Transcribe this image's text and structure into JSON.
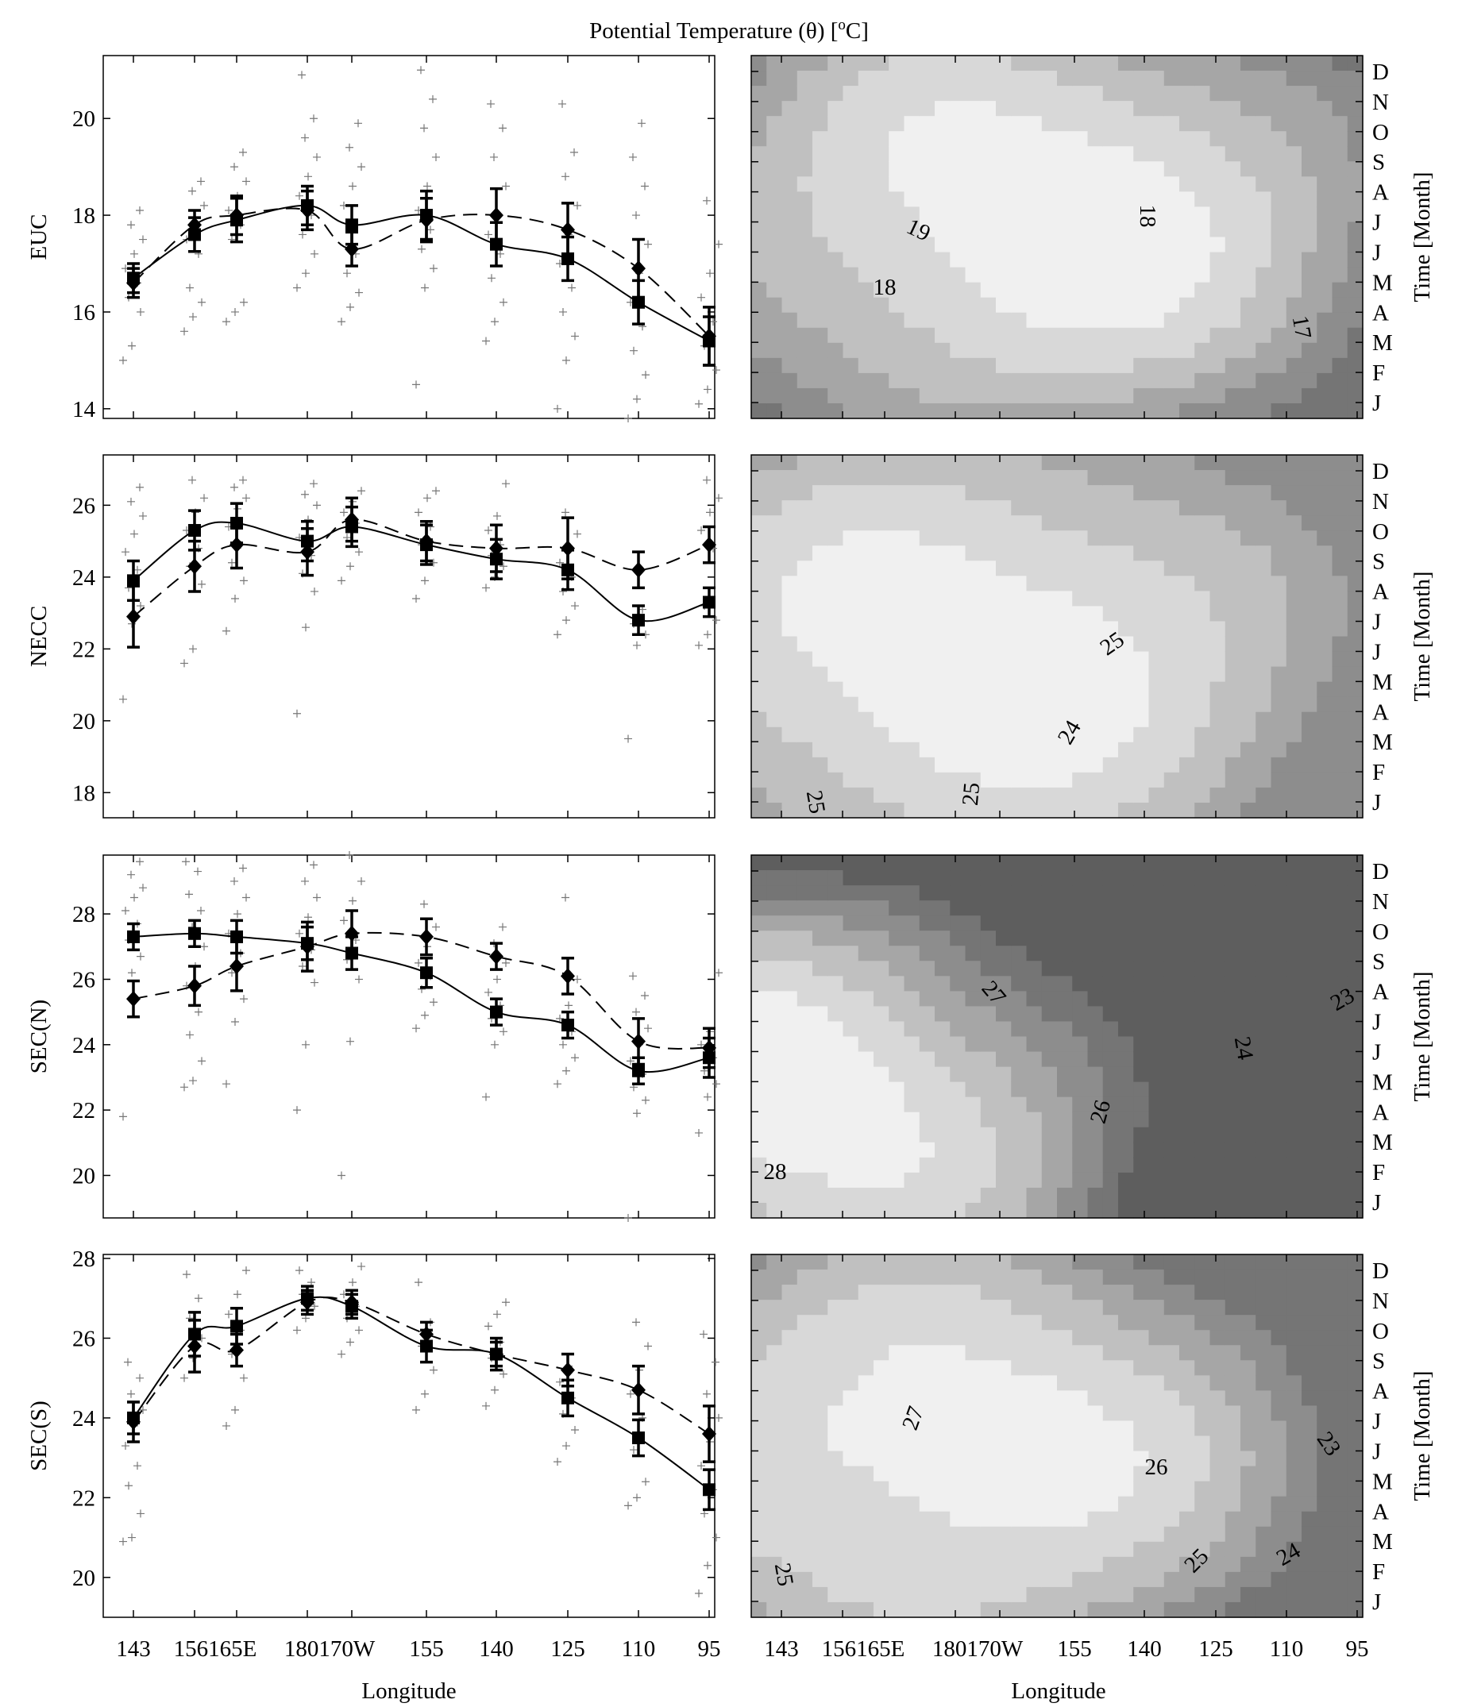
{
  "figure": {
    "title": "Potential Temperature (θ) [",
    "title_sup": "o",
    "title_unit": "C]",
    "xlabel": "Longitude",
    "time_label": "Time [Month]"
  },
  "colors": {
    "shades": [
      "#ffffff",
      "#f0f0f0",
      "#d8d8d8",
      "#c0c0c0",
      "#a6a6a6",
      "#8d8d8d",
      "#757575",
      "#5e5e5e"
    ]
  },
  "chart_data": [
    {
      "type": "line",
      "panel": "EUC",
      "ylabel": "EUC",
      "ylim": [
        13.8,
        21.3
      ],
      "yticks": [
        14,
        16,
        18,
        20
      ],
      "x_categories": [
        "143",
        "156",
        "165E",
        "180",
        "170W",
        "155",
        "140",
        "125",
        "110",
        "95"
      ],
      "series": [
        {
          "style": "solid-square",
          "values": [
            16.7,
            17.6,
            17.9,
            18.2,
            17.8,
            18.0,
            17.4,
            17.1,
            16.2,
            15.4
          ],
          "errors": [
            0.3,
            0.35,
            0.45,
            0.4,
            0.4,
            0.5,
            0.45,
            0.45,
            0.45,
            0.5
          ]
        },
        {
          "style": "dashed-diamond",
          "values": [
            16.6,
            17.8,
            18.0,
            18.1,
            17.3,
            17.9,
            18.0,
            17.7,
            16.9,
            15.5
          ],
          "errors": [
            0.3,
            0.3,
            0.4,
            0.4,
            0.35,
            0.45,
            0.55,
            0.55,
            0.6,
            0.6
          ]
        }
      ],
      "scatter": [
        [
          15.0,
          15.3,
          16.0,
          16.3,
          16.6,
          16.9,
          17.2,
          17.5,
          17.8,
          18.1
        ],
        [
          15.6,
          15.9,
          16.2,
          16.5,
          17.2,
          17.5,
          17.8,
          18.2,
          18.5,
          18.7
        ],
        [
          15.8,
          16.0,
          16.2,
          17.5,
          17.8,
          18.1,
          18.4,
          18.7,
          19.0,
          19.3
        ],
        [
          16.5,
          16.8,
          17.2,
          17.6,
          18.0,
          18.4,
          18.8,
          19.2,
          19.6,
          20.0,
          20.9
        ],
        [
          15.8,
          16.1,
          16.4,
          16.8,
          17.2,
          18.2,
          18.6,
          19.0,
          19.4,
          19.9
        ],
        [
          14.5,
          16.5,
          16.9,
          17.3,
          17.7,
          18.1,
          18.6,
          19.2,
          19.8,
          20.4,
          21.0
        ],
        [
          15.4,
          15.8,
          16.2,
          16.7,
          17.2,
          17.6,
          18.0,
          18.6,
          19.2,
          19.8,
          20.3
        ],
        [
          14.0,
          15.0,
          15.5,
          16.0,
          16.5,
          17.0,
          17.6,
          18.2,
          18.8,
          19.3,
          20.3
        ],
        [
          13.8,
          14.2,
          14.7,
          15.2,
          15.7,
          16.2,
          16.8,
          17.4,
          18.0,
          18.6,
          19.2,
          19.9
        ],
        [
          14.1,
          14.4,
          14.8,
          15.3,
          15.8,
          16.3,
          16.8,
          17.4,
          18.3
        ]
      ],
      "contour": {
        "levels": [
          16,
          17,
          18,
          19,
          20
        ],
        "labels": [
          {
            "text": "19",
            "x": 1157,
            "y": 289,
            "rotate": 25
          },
          {
            "text": "18",
            "x": 1114,
            "y": 361,
            "rotate": 0
          },
          {
            "text": "18",
            "x": 1446,
            "y": 272,
            "rotate": 90
          },
          {
            "text": "17",
            "x": 1640,
            "y": 412,
            "rotate": 80
          }
        ]
      }
    },
    {
      "type": "line",
      "panel": "NECC",
      "ylabel": "NECC",
      "ylim": [
        17.3,
        27.4
      ],
      "yticks": [
        18,
        20,
        22,
        24,
        26
      ],
      "x_categories": [
        "143",
        "156",
        "165E",
        "180",
        "170W",
        "155",
        "140",
        "125",
        "110",
        "95"
      ],
      "series": [
        {
          "style": "solid-square",
          "values": [
            23.9,
            25.3,
            25.5,
            25.0,
            25.4,
            24.9,
            24.5,
            24.2,
            22.8,
            23.3
          ],
          "errors": [
            0.55,
            0.55,
            0.55,
            0.55,
            0.55,
            0.55,
            0.55,
            0.55,
            0.4,
            0.4
          ]
        },
        {
          "style": "dashed-diamond",
          "values": [
            22.9,
            24.3,
            24.9,
            24.7,
            25.6,
            25.0,
            24.8,
            24.8,
            24.2,
            24.9
          ],
          "errors": [
            0.85,
            0.7,
            0.65,
            0.65,
            0.6,
            0.55,
            0.65,
            0.85,
            0.5,
            0.5
          ]
        }
      ],
      "scatter": [
        [
          20.6,
          22.7,
          23.2,
          23.7,
          24.2,
          24.7,
          25.2,
          25.7,
          26.1,
          26.5
        ],
        [
          21.6,
          22.0,
          23.8,
          24.3,
          24.8,
          25.3,
          25.8,
          26.2,
          26.7
        ],
        [
          22.5,
          23.4,
          23.9,
          24.4,
          24.9,
          25.4,
          25.9,
          26.2,
          26.5,
          26.7
        ],
        [
          20.2,
          22.6,
          23.6,
          24.1,
          24.6,
          25.1,
          25.6,
          26.0,
          26.3,
          26.6
        ],
        [
          23.9,
          24.3,
          24.7,
          25.1,
          25.5,
          25.8,
          26.1,
          26.4
        ],
        [
          23.4,
          23.9,
          24.4,
          24.9,
          25.4,
          25.8,
          26.2,
          26.4
        ],
        [
          23.7,
          24.0,
          24.3,
          24.6,
          24.9,
          25.3,
          25.7,
          26.6
        ],
        [
          22.4,
          22.8,
          23.2,
          23.6,
          24.0,
          24.4,
          24.8,
          25.2,
          25.8
        ],
        [
          19.5,
          22.1,
          22.4,
          22.7,
          23.1
        ],
        [
          22.1,
          22.4,
          22.8,
          23.2,
          24.8,
          25.3,
          25.8,
          26.2,
          26.7
        ]
      ],
      "contour": {
        "levels": [
          23,
          24,
          25,
          26
        ],
        "labels": [
          {
            "text": "25",
            "x": 1400,
            "y": 810,
            "rotate": -35
          },
          {
            "text": "24",
            "x": 1346,
            "y": 922,
            "rotate": -60
          },
          {
            "text": "25",
            "x": 1028,
            "y": 1010,
            "rotate": 80
          },
          {
            "text": "25",
            "x": 1222,
            "y": 1000,
            "rotate": -85
          }
        ]
      }
    },
    {
      "type": "line",
      "panel": "SEC(N)",
      "ylabel": "SEC(N)",
      "ylim": [
        18.7,
        29.8
      ],
      "yticks": [
        20,
        22,
        24,
        26,
        28
      ],
      "x_categories": [
        "143",
        "156",
        "165E",
        "180",
        "170W",
        "155",
        "140",
        "125",
        "110",
        "95"
      ],
      "series": [
        {
          "style": "solid-square",
          "values": [
            27.3,
            27.4,
            27.3,
            27.1,
            26.8,
            26.2,
            25.0,
            24.6,
            23.2,
            23.6
          ],
          "errors": [
            0.4,
            0.4,
            0.5,
            0.5,
            0.5,
            0.45,
            0.4,
            0.4,
            0.4,
            0.6
          ]
        },
        {
          "style": "dashed-diamond",
          "values": [
            25.4,
            25.8,
            26.4,
            27.0,
            27.4,
            27.3,
            26.7,
            26.1,
            24.1,
            23.9
          ],
          "errors": [
            0.55,
            0.6,
            0.75,
            0.75,
            0.7,
            0.55,
            0.4,
            0.55,
            0.7,
            0.6
          ]
        }
      ],
      "scatter": [
        [
          21.8,
          26.2,
          26.7,
          27.2,
          27.7,
          28.1,
          28.5,
          28.8,
          29.2,
          29.6
        ],
        [
          22.7,
          22.9,
          23.5,
          24.3,
          25.0,
          25.8,
          26.4,
          27.0,
          27.6,
          28.1,
          28.6,
          29.3,
          29.6
        ],
        [
          22.8,
          24.7,
          25.4,
          26.2,
          26.8,
          27.4,
          28.0,
          28.5,
          29.0,
          29.4
        ],
        [
          22.0,
          24.0,
          25.9,
          26.4,
          26.9,
          27.4,
          27.9,
          28.5,
          29.0,
          29.5
        ],
        [
          20.0,
          24.1,
          26.0,
          26.6,
          27.2,
          27.8,
          28.4,
          29.0,
          29.8
        ],
        [
          24.5,
          24.9,
          25.3,
          25.7,
          26.1,
          26.5,
          27.0,
          27.6,
          28.3
        ],
        [
          22.4,
          24.0,
          24.4,
          24.8,
          25.2,
          25.6,
          26.0,
          26.5,
          27.1,
          27.6
        ],
        [
          22.8,
          23.2,
          23.6,
          24.0,
          24.4,
          24.8,
          25.2,
          26.0,
          28.5
        ],
        [
          18.7,
          21.9,
          22.3,
          22.7,
          23.1,
          23.5,
          24.0,
          24.5,
          25.0,
          25.5,
          26.1
        ],
        [
          21.3,
          22.4,
          22.8,
          23.2,
          23.6,
          24.0,
          24.4,
          26.2
        ]
      ],
      "contour": {
        "levels": [
          22,
          23,
          24,
          25,
          26,
          27,
          28
        ],
        "labels": [
          {
            "text": "28",
            "x": 976,
            "y": 1475,
            "rotate": 0
          },
          {
            "text": "27",
            "x": 1252,
            "y": 1250,
            "rotate": 50
          },
          {
            "text": "26",
            "x": 1385,
            "y": 1400,
            "rotate": -75
          },
          {
            "text": "24",
            "x": 1567,
            "y": 1320,
            "rotate": 80
          },
          {
            "text": "23",
            "x": 1690,
            "y": 1258,
            "rotate": -30
          }
        ]
      }
    },
    {
      "type": "line",
      "panel": "SEC(S)",
      "ylabel": "SEC(S)",
      "ylim": [
        19.0,
        28.1
      ],
      "yticks": [
        20,
        22,
        24,
        26,
        28
      ],
      "x_categories": [
        "143",
        "156",
        "165E",
        "180",
        "170W",
        "155",
        "140",
        "125",
        "110",
        "95"
      ],
      "series": [
        {
          "style": "solid-square",
          "values": [
            24.0,
            26.1,
            26.3,
            27.0,
            26.8,
            25.8,
            25.6,
            24.5,
            23.5,
            22.2
          ],
          "errors": [
            0.4,
            0.55,
            0.45,
            0.3,
            0.3,
            0.4,
            0.4,
            0.45,
            0.45,
            0.5
          ]
        },
        {
          "style": "dashed-diamond",
          "values": [
            23.9,
            25.8,
            25.7,
            26.9,
            26.9,
            26.1,
            25.6,
            25.2,
            24.7,
            23.6
          ],
          "errors": [
            0.5,
            0.65,
            0.4,
            0.3,
            0.3,
            0.3,
            0.3,
            0.4,
            0.6,
            0.7
          ]
        }
      ],
      "scatter": [
        [
          20.9,
          21.0,
          21.6,
          22.3,
          22.8,
          23.3,
          23.8,
          24.2,
          24.6,
          25.0,
          25.4
        ],
        [
          25.0,
          25.5,
          26.0,
          26.5,
          27.0,
          27.6
        ],
        [
          23.8,
          24.2,
          25.0,
          25.6,
          26.2,
          26.6,
          27.1,
          27.7
        ],
        [
          26.2,
          26.5,
          26.8,
          27.1,
          27.4,
          27.7
        ],
        [
          25.6,
          25.9,
          26.2,
          26.5,
          26.8,
          27.1,
          27.4,
          27.8
        ],
        [
          24.2,
          24.6,
          25.2,
          25.8,
          26.4,
          27.4
        ],
        [
          24.3,
          24.7,
          25.1,
          25.5,
          25.9,
          26.3,
          26.6,
          26.9
        ],
        [
          22.9,
          23.3,
          23.7,
          24.1,
          24.5,
          24.9,
          25.3
        ],
        [
          21.8,
          22.0,
          22.4,
          23.2,
          24.0,
          24.6,
          25.2,
          25.8,
          26.4
        ],
        [
          19.6,
          20.3,
          21.0,
          21.6,
          22.2,
          22.8,
          23.4,
          24.0,
          24.6,
          25.4,
          26.1
        ]
      ],
      "contour": {
        "levels": [
          23,
          24,
          25,
          26,
          27
        ],
        "labels": [
          {
            "text": "27",
            "x": 1149,
            "y": 1786,
            "rotate": -70
          },
          {
            "text": "26",
            "x": 1456,
            "y": 1847,
            "rotate": 0
          },
          {
            "text": "25",
            "x": 1506,
            "y": 1965,
            "rotate": -45
          },
          {
            "text": "24",
            "x": 1622,
            "y": 1957,
            "rotate": -30
          },
          {
            "text": "23",
            "x": 1674,
            "y": 1818,
            "rotate": 55
          },
          {
            "text": "25",
            "x": 988,
            "y": 1983,
            "rotate": 80
          }
        ]
      }
    }
  ],
  "x_tick_labels": [
    "143",
    "156165E",
    "180170W",
    "155",
    "140",
    "125",
    "110",
    "95"
  ],
  "month_labels": [
    "D",
    "N",
    "O",
    "S",
    "A",
    "J",
    "J",
    "M",
    "A",
    "M",
    "F",
    "J"
  ]
}
